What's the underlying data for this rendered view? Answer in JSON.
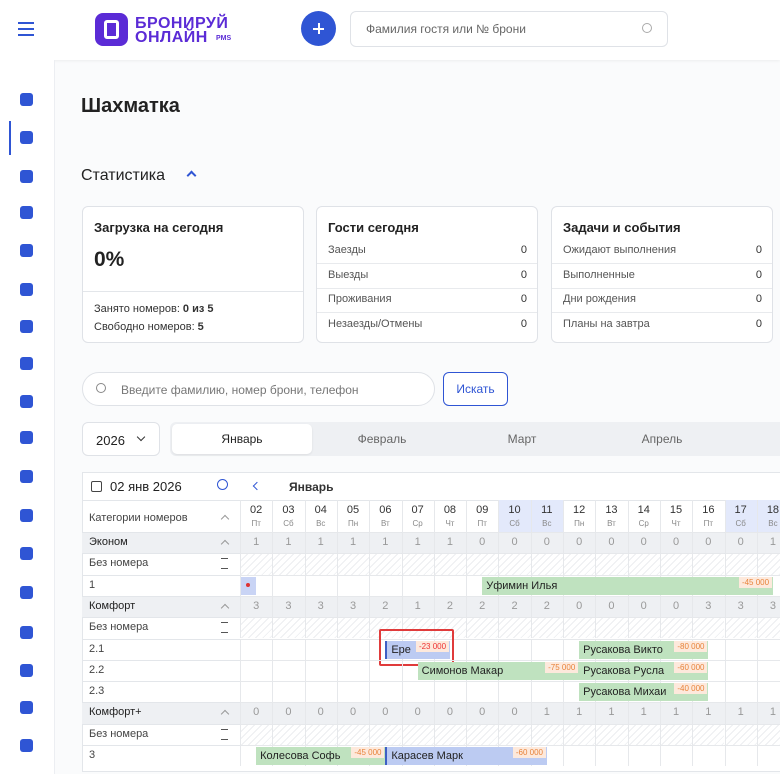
{
  "header": {
    "logo_line1": "БРОНИРУЙ",
    "logo_line2": "ОНЛАЙН",
    "logo_suffix": "PMS",
    "search_placeholder": "Фамилия гостя или № брони"
  },
  "page_title": "Шахматка",
  "stats": {
    "title": "Статистика",
    "cards": [
      {
        "title": "Загрузка на сегодня",
        "big": "0%",
        "lines": [
          {
            "label": "Занято номеров:",
            "value": "0 из 5"
          },
          {
            "label": "Свободно номеров:",
            "value": "5"
          }
        ]
      },
      {
        "title": "Гости сегодня",
        "rows": [
          {
            "label": "Заезды",
            "value": "0"
          },
          {
            "label": "Выезды",
            "value": "0"
          },
          {
            "label": "Проживания",
            "value": "0"
          },
          {
            "label": "Незаезды/Отмены",
            "value": "0"
          }
        ]
      },
      {
        "title": "Задачи и события",
        "rows": [
          {
            "label": "Ожидают выполнения",
            "value": "0"
          },
          {
            "label": "Выполненные",
            "value": "0"
          },
          {
            "label": "Дни рождения",
            "value": "0"
          },
          {
            "label": "Планы на завтра",
            "value": "0"
          }
        ]
      }
    ]
  },
  "search": {
    "placeholder": "Введите фамилию, номер брони, телефон",
    "button": "Искать"
  },
  "year": "2026",
  "months": [
    "Январь",
    "Февраль",
    "Март",
    "Апрель"
  ],
  "active_month": "Январь",
  "grid": {
    "date": "02 янв 2026",
    "month": "Январь",
    "categories_header": "Категории номеров",
    "days": [
      {
        "d": "02",
        "w": "Пт"
      },
      {
        "d": "03",
        "w": "Сб"
      },
      {
        "d": "04",
        "w": "Вс"
      },
      {
        "d": "05",
        "w": "Пн"
      },
      {
        "d": "06",
        "w": "Вт"
      },
      {
        "d": "07",
        "w": "Ср"
      },
      {
        "d": "08",
        "w": "Чт"
      },
      {
        "d": "09",
        "w": "Пт"
      },
      {
        "d": "10",
        "w": "Сб",
        "highlight": true
      },
      {
        "d": "11",
        "w": "Вс",
        "highlight": true
      },
      {
        "d": "12",
        "w": "Пн"
      },
      {
        "d": "13",
        "w": "Вт"
      },
      {
        "d": "14",
        "w": "Ср"
      },
      {
        "d": "15",
        "w": "Чт"
      },
      {
        "d": "16",
        "w": "Пт"
      },
      {
        "d": "17",
        "w": "Сб",
        "highlight": true
      },
      {
        "d": "18",
        "w": "Вс",
        "highlight": true
      }
    ],
    "rows": [
      {
        "kind": "category",
        "label": "Эконом",
        "counts": [
          "1",
          "1",
          "1",
          "1",
          "1",
          "1",
          "1",
          "0",
          "0",
          "0",
          "0",
          "0",
          "0",
          "0",
          "0",
          "0",
          "1"
        ]
      },
      {
        "kind": "unassigned",
        "label": "Без номера"
      },
      {
        "kind": "room",
        "label": "1",
        "bookings": [
          {
            "name": "Уфимин Илья",
            "price": "-45 000",
            "start": "09",
            "end": "18",
            "color": "#bfe2bf"
          }
        ]
      },
      {
        "kind": "category",
        "label": "Комфорт",
        "counts": [
          "3",
          "3",
          "3",
          "3",
          "2",
          "1",
          "2",
          "2",
          "2",
          "2",
          "0",
          "0",
          "0",
          "0",
          "3",
          "3",
          "3"
        ]
      },
      {
        "kind": "unassigned",
        "label": "Без номера"
      },
      {
        "kind": "room",
        "label": "2.1",
        "bookings": [
          {
            "name": "Ере",
            "price": "-23 000",
            "start": "06",
            "end": "08",
            "color": "#bccbf2",
            "highlight": true
          },
          {
            "name": "Русакова Викто",
            "price": "-80 000",
            "start": "12",
            "end": "16",
            "color": "#bfe2bf"
          }
        ]
      },
      {
        "kind": "room",
        "label": "2.2",
        "bookings": [
          {
            "name": "Симонов Макар",
            "price": "-75 000",
            "start": "07",
            "end": "12",
            "color": "#bfe2bf"
          },
          {
            "name": "Русакова Русла",
            "price": "-60 000",
            "start": "12",
            "end": "16",
            "color": "#bfe2bf"
          }
        ]
      },
      {
        "kind": "room",
        "label": "2.3",
        "bookings": [
          {
            "name": "Русакова Михаи",
            "price": "-40 000",
            "start": "12",
            "end": "16",
            "color": "#bfe2bf"
          }
        ]
      },
      {
        "kind": "category",
        "label": "Комфорт+",
        "counts": [
          "0",
          "0",
          "0",
          "0",
          "0",
          "0",
          "0",
          "0",
          "0",
          "1",
          "1",
          "1",
          "1",
          "1",
          "1",
          "1",
          "1"
        ]
      },
      {
        "kind": "unassigned",
        "label": "Без номера"
      },
      {
        "kind": "room",
        "label": "3",
        "bookings": [
          {
            "name": "Колесова Софь",
            "price": "-45 000",
            "start": "02",
            "end": "06",
            "color": "#bfe2bf"
          },
          {
            "name": "Карасев Марк",
            "price": "-60 000",
            "start": "06",
            "end": "11",
            "color": "#bccbf2"
          }
        ]
      }
    ]
  }
}
